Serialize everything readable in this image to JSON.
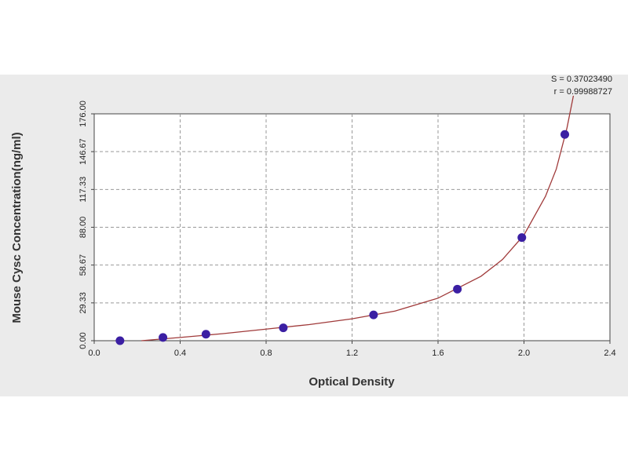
{
  "chart_data": {
    "type": "scatter",
    "xlabel": "Optical Density",
    "ylabel": "Mouse Cysc Concentration(ng/ml)",
    "annotations": [
      "S = 0.37023490",
      "r = 0.99988727"
    ],
    "points": {
      "color": "#3b1fa3",
      "x": [
        0.12,
        0.32,
        0.52,
        0.88,
        1.3,
        1.69,
        1.99,
        2.19
      ],
      "y": [
        0,
        2.5,
        5,
        10,
        20,
        40,
        80,
        160
      ]
    },
    "fit": {
      "color": "#a03a3a",
      "x": [
        0.22,
        0.4,
        0.6,
        0.8,
        1.0,
        1.2,
        1.4,
        1.6,
        1.8,
        1.9,
        2.0,
        2.1,
        2.15,
        2.2,
        2.23
      ],
      "y": [
        0,
        2.5,
        5.5,
        9,
        12.5,
        17,
        23,
        33,
        50,
        63,
        82,
        112,
        133,
        165,
        190
      ]
    },
    "xlim": [
      0,
      2.4
    ],
    "ylim": [
      0,
      176
    ],
    "xticks": [
      {
        "value": 0,
        "label": "0.0"
      },
      {
        "value": 0.4,
        "label": "0.4"
      },
      {
        "value": 0.8,
        "label": "0.8"
      },
      {
        "value": 1.2,
        "label": "1.2"
      },
      {
        "value": 1.6,
        "label": "1.6"
      },
      {
        "value": 2.0,
        "label": "2.0"
      },
      {
        "value": 2.4,
        "label": "2.4"
      }
    ],
    "yticks": [
      {
        "value": 0,
        "label": "0.00"
      },
      {
        "value": 29.33,
        "label": "29.33"
      },
      {
        "value": 58.67,
        "label": "58.67"
      },
      {
        "value": 88,
        "label": "88.00"
      },
      {
        "value": 117.33,
        "label": "117.33"
      },
      {
        "value": 146.67,
        "label": "146.67"
      },
      {
        "value": 176,
        "label": "176.00"
      }
    ],
    "grid": true
  }
}
